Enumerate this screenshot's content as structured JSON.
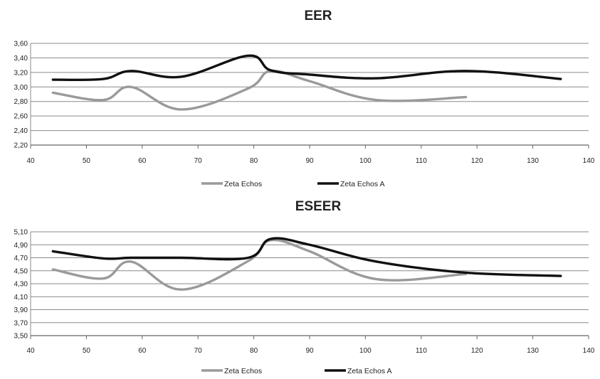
{
  "chart_data": [
    {
      "type": "line",
      "title": "EER",
      "xlim": [
        40,
        140
      ],
      "ylim": [
        2.2,
        3.6
      ],
      "x_ticks": [
        "40",
        "50",
        "60",
        "70",
        "80",
        "90",
        "100",
        "110",
        "120",
        "130",
        "140"
      ],
      "y_ticks": [
        "2,20",
        "2,40",
        "2,60",
        "2,80",
        "3,00",
        "3,20",
        "3,40",
        "3,60"
      ],
      "grid": true,
      "legend": "bottom",
      "series": [
        {
          "name": "Zeta Echos",
          "color": "#9a9a9a",
          "points": [
            [
              44,
              2.92
            ],
            [
              53,
              2.82
            ],
            [
              58,
              3.0
            ],
            [
              67,
              2.69
            ],
            [
              79,
              2.98
            ],
            [
              83,
              3.22
            ],
            [
              90,
              3.08
            ],
            [
              102,
              2.82
            ],
            [
              118,
              2.86
            ]
          ]
        },
        {
          "name": "Zeta Echos A",
          "color": "#111111",
          "points": [
            [
              44,
              3.1
            ],
            [
              53,
              3.11
            ],
            [
              58,
              3.22
            ],
            [
              67,
              3.14
            ],
            [
              79,
              3.43
            ],
            [
              83,
              3.23
            ],
            [
              90,
              3.17
            ],
            [
              102,
              3.12
            ],
            [
              118,
              3.22
            ],
            [
              135,
              3.11
            ]
          ]
        }
      ]
    },
    {
      "type": "line",
      "title": "ESEER",
      "xlim": [
        40,
        140
      ],
      "ylim": [
        3.5,
        5.1
      ],
      "x_ticks": [
        "40",
        "50",
        "60",
        "70",
        "80",
        "90",
        "100",
        "110",
        "120",
        "130",
        "140"
      ],
      "y_ticks": [
        "3,50",
        "3,70",
        "3,90",
        "4,10",
        "4,30",
        "4,50",
        "4,70",
        "4,90",
        "5,10"
      ],
      "grid": true,
      "legend": "bottom",
      "series": [
        {
          "name": "Zeta Echos",
          "color": "#9a9a9a",
          "points": [
            [
              44,
              4.52
            ],
            [
              53,
              4.38
            ],
            [
              58,
              4.64
            ],
            [
              67,
              4.21
            ],
            [
              79,
              4.65
            ],
            [
              83,
              4.97
            ],
            [
              90,
              4.8
            ],
            [
              102,
              4.37
            ],
            [
              118,
              4.45
            ]
          ]
        },
        {
          "name": "Zeta Echos A",
          "color": "#111111",
          "points": [
            [
              44,
              4.8
            ],
            [
              53,
              4.69
            ],
            [
              58,
              4.7
            ],
            [
              67,
              4.7
            ],
            [
              79,
              4.7
            ],
            [
              83,
              4.99
            ],
            [
              90,
              4.9
            ],
            [
              102,
              4.64
            ],
            [
              118,
              4.47
            ],
            [
              135,
              4.42
            ]
          ]
        }
      ]
    }
  ]
}
